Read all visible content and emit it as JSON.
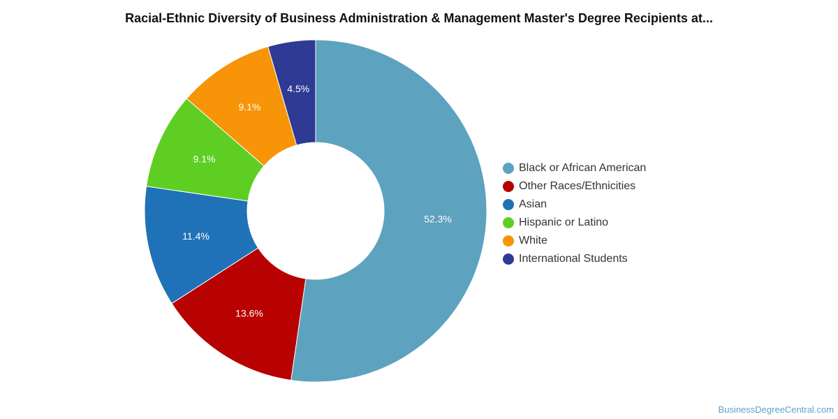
{
  "chart_data": {
    "type": "pie",
    "title": "Racial-Ethnic Diversity of Business Administration & Management Master's Degree Recipients at...",
    "hole": true,
    "legend_position": "right",
    "slices": [
      {
        "label": "Black or African American",
        "value": 52.3,
        "display": "52.3%",
        "color": "#5da2be"
      },
      {
        "label": "Other Races/Ethnicities",
        "value": 13.6,
        "display": "13.6%",
        "color": "#b80202"
      },
      {
        "label": "Asian",
        "value": 11.4,
        "display": "11.4%",
        "color": "#1f72b8"
      },
      {
        "label": "Hispanic or Latino",
        "value": 9.1,
        "display": "9.1%",
        "color": "#5fce23"
      },
      {
        "label": "White",
        "value": 9.1,
        "display": "9.1%",
        "color": "#f79408"
      },
      {
        "label": "International Students",
        "value": 4.5,
        "display": "4.5%",
        "color": "#2e3a94"
      }
    ]
  },
  "watermark": "BusinessDegreeCentral.com"
}
